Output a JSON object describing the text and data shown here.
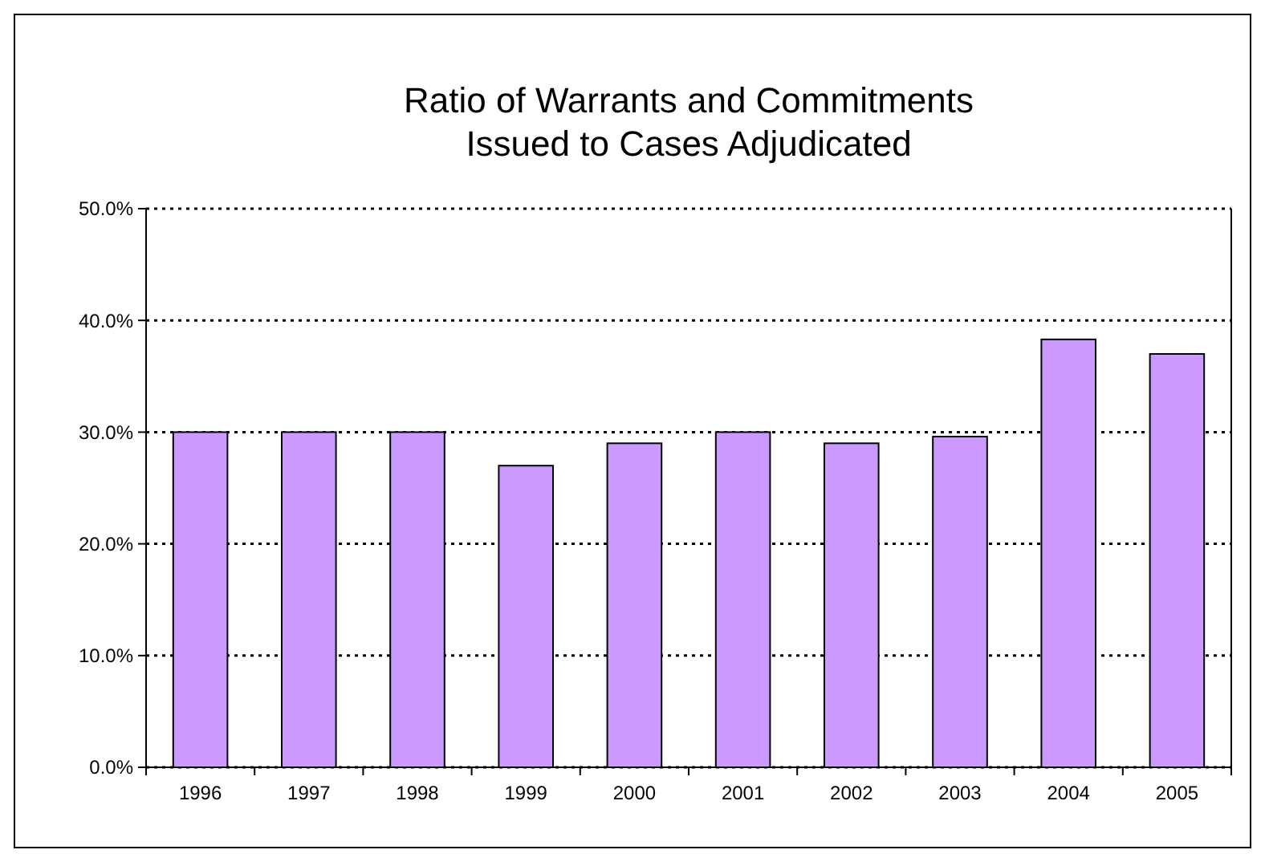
{
  "chart_data": {
    "type": "bar",
    "title": "Ratio of Warrants and Commitments\nIssued to Cases Adjudicated",
    "categories": [
      "1996",
      "1997",
      "1998",
      "1999",
      "2000",
      "2001",
      "2002",
      "2003",
      "2004",
      "2005"
    ],
    "values": [
      30,
      30,
      30,
      27,
      29,
      30,
      29,
      29.6,
      38.3,
      37
    ],
    "color": "#cc99ff",
    "ylim": [
      0,
      50
    ],
    "yticks": [
      {
        "value": 0,
        "label": "0.0%"
      },
      {
        "value": 10,
        "label": "10.0%"
      },
      {
        "value": 20,
        "label": "20.0%"
      },
      {
        "value": 30,
        "label": "30.0%"
      },
      {
        "value": 40,
        "label": "40.0%"
      },
      {
        "value": 50,
        "label": "50.0%"
      }
    ],
    "grid": "y"
  }
}
